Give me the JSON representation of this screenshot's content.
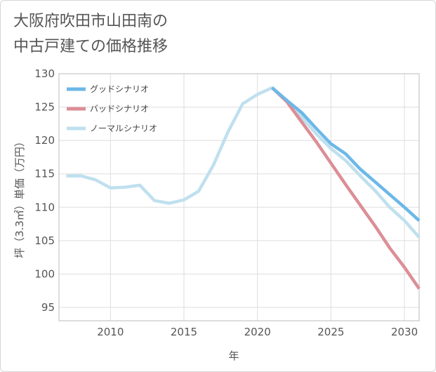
{
  "chart_data": {
    "type": "line",
    "title": "大阪府吹田市山田南の\n中古戸建ての価格推移",
    "xlabel": "年",
    "ylabel": "坪（3.3㎡）単価（万円）",
    "xlim": [
      2006.5,
      2031
    ],
    "ylim": [
      93,
      130
    ],
    "xticks": [
      2010,
      2015,
      2020,
      2025,
      2030
    ],
    "yticks": [
      95,
      100,
      105,
      110,
      115,
      120,
      125,
      130
    ],
    "legend_position": "top-left",
    "series": [
      {
        "name": "グッドシナリオ",
        "color": "#6cb8e8",
        "points": [
          [
            2021,
            127.9
          ],
          [
            2022,
            126.0
          ],
          [
            2023,
            124.2
          ],
          [
            2024,
            121.8
          ],
          [
            2025,
            119.5
          ],
          [
            2026,
            118.0
          ],
          [
            2027,
            115.7
          ],
          [
            2028,
            113.8
          ],
          [
            2029,
            111.9
          ],
          [
            2030,
            110.0
          ],
          [
            2031,
            108.0
          ]
        ]
      },
      {
        "name": "バッドシナリオ",
        "color": "#dc8e96",
        "points": [
          [
            2021,
            127.9
          ],
          [
            2022,
            125.8
          ],
          [
            2023,
            122.8
          ],
          [
            2024,
            119.8
          ],
          [
            2025,
            116.6
          ],
          [
            2026,
            113.4
          ],
          [
            2027,
            110.3
          ],
          [
            2028,
            107.2
          ],
          [
            2029,
            103.9
          ],
          [
            2030,
            101.0
          ],
          [
            2031,
            97.8
          ]
        ]
      },
      {
        "name": "ノーマルシナリオ",
        "color": "#bfe0ee",
        "points": [
          [
            2007,
            114.7
          ],
          [
            2008,
            114.7
          ],
          [
            2009,
            114.1
          ],
          [
            2010,
            112.9
          ],
          [
            2011,
            113.0
          ],
          [
            2012,
            113.3
          ],
          [
            2013,
            111.0
          ],
          [
            2014,
            110.6
          ],
          [
            2015,
            111.1
          ],
          [
            2016,
            112.4
          ],
          [
            2017,
            116.3
          ],
          [
            2018,
            121.3
          ],
          [
            2019,
            125.5
          ],
          [
            2020,
            126.9
          ],
          [
            2021,
            127.9
          ],
          [
            2022,
            125.9
          ],
          [
            2023,
            123.5
          ],
          [
            2024,
            121.0
          ],
          [
            2025,
            118.8
          ],
          [
            2026,
            117.0
          ],
          [
            2027,
            114.7
          ],
          [
            2028,
            112.5
          ],
          [
            2029,
            110.0
          ],
          [
            2030,
            108.0
          ],
          [
            2031,
            105.5
          ]
        ]
      }
    ]
  }
}
